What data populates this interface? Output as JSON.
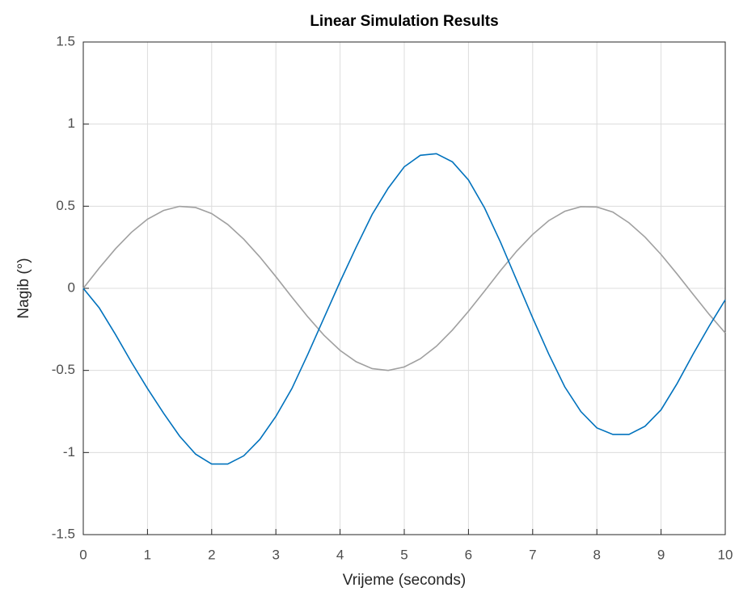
{
  "chart_data": {
    "type": "line",
    "title": "Linear Simulation Results",
    "xlabel": "Vrijeme (seconds)",
    "ylabel": "Nagib (°)",
    "x": [
      0,
      0.25,
      0.5,
      0.75,
      1,
      1.25,
      1.5,
      1.75,
      2,
      2.25,
      2.5,
      2.75,
      3,
      3.25,
      3.5,
      3.75,
      4,
      4.25,
      4.5,
      4.75,
      5,
      5.25,
      5.5,
      5.75,
      6,
      6.25,
      6.5,
      6.75,
      7,
      7.25,
      7.5,
      7.75,
      8,
      8.25,
      8.5,
      8.75,
      9,
      9.25,
      9.5,
      9.75,
      10
    ],
    "series": [
      {
        "color": "#a0a0a0",
        "values": [
          0,
          0.124,
          0.24,
          0.341,
          0.421,
          0.474,
          0.499,
          0.492,
          0.455,
          0.389,
          0.299,
          0.191,
          0.071,
          -0.054,
          -0.175,
          -0.286,
          -0.378,
          -0.447,
          -0.489,
          -0.5,
          -0.479,
          -0.429,
          -0.353,
          -0.254,
          -0.14,
          -0.017,
          0.108,
          0.226,
          0.328,
          0.412,
          0.469,
          0.497,
          0.495,
          0.464,
          0.399,
          0.312,
          0.206,
          0.087,
          -0.037,
          -0.159,
          -0.272
        ]
      },
      {
        "color": "#0072bd",
        "values": [
          0,
          -0.12,
          -0.28,
          -0.45,
          -0.61,
          -0.76,
          -0.9,
          -1.01,
          -1.07,
          -1.07,
          -1.02,
          -0.92,
          -0.78,
          -0.61,
          -0.4,
          -0.18,
          0.04,
          0.25,
          0.45,
          0.61,
          0.74,
          0.81,
          0.82,
          0.77,
          0.66,
          0.49,
          0.28,
          0.05,
          -0.18,
          -0.4,
          -0.6,
          -0.75,
          -0.85,
          -0.89,
          -0.89,
          -0.84,
          -0.74,
          -0.58,
          -0.4,
          -0.23,
          -0.07
        ]
      }
    ],
    "xlim": [
      0,
      10
    ],
    "xticks": [
      0,
      1,
      2,
      3,
      4,
      5,
      6,
      7,
      8,
      9,
      10
    ],
    "ylim": [
      -1.5,
      1.5
    ],
    "yticks": [
      -1.5,
      -1,
      -0.5,
      0,
      0.5,
      1,
      1.5
    ],
    "grid": true
  }
}
